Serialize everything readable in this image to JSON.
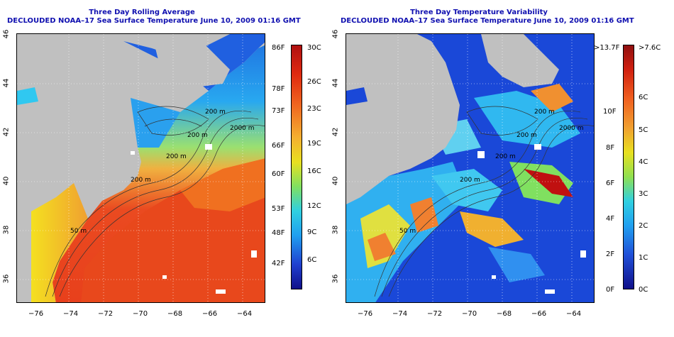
{
  "left_panel": {
    "title_line1": "Three Day Rolling Average",
    "title_line2": "DECLOUDED NOAA–17 Sea Surface Temperature June 10, 2009 01:16 GMT",
    "contour_labels": [
      "200 m",
      "2000 m",
      "200 m",
      "200 m",
      "200 m",
      "50 m"
    ],
    "colorbar_left_labels": [
      "86F",
      "78F",
      "73F",
      "66F",
      "60F",
      "53F",
      "48F",
      "42F"
    ],
    "colorbar_right_labels": [
      "30C",
      "26C",
      "23C",
      "19C",
      "16C",
      "12C",
      "9C",
      "6C"
    ]
  },
  "right_panel": {
    "title_line1": "Three Day Temperature Variability",
    "title_line2": "DECLOUDED NOAA–17 Sea Surface Temperature June 10, 2009 01:16 GMT",
    "contour_labels": [
      "200 m",
      "2000 m",
      "200 m",
      "200 m",
      "200 m",
      "50 m"
    ],
    "colorbar_left_labels": ">13.7F|10F|8F|6F|4F|2F|0F",
    "colorbar_left_list": [
      ">13.7F",
      "10F",
      "8F",
      "6F",
      "4F",
      "2F",
      "0F"
    ],
    "colorbar_right_list": [
      ">7.6C",
      "6C",
      "5C",
      "4C",
      "3C",
      "2C",
      "1C",
      "0C"
    ]
  },
  "axes": {
    "longitude_ticks": [
      "−76",
      "−74",
      "−72",
      "−70",
      "−68",
      "−66",
      "−64"
    ],
    "latitude_ticks": [
      "46",
      "44",
      "42",
      "40",
      "38",
      "36"
    ]
  },
  "colors": {
    "title": "#1010b0",
    "land": "#c0c0c0",
    "cloud": "#ffffff"
  }
}
